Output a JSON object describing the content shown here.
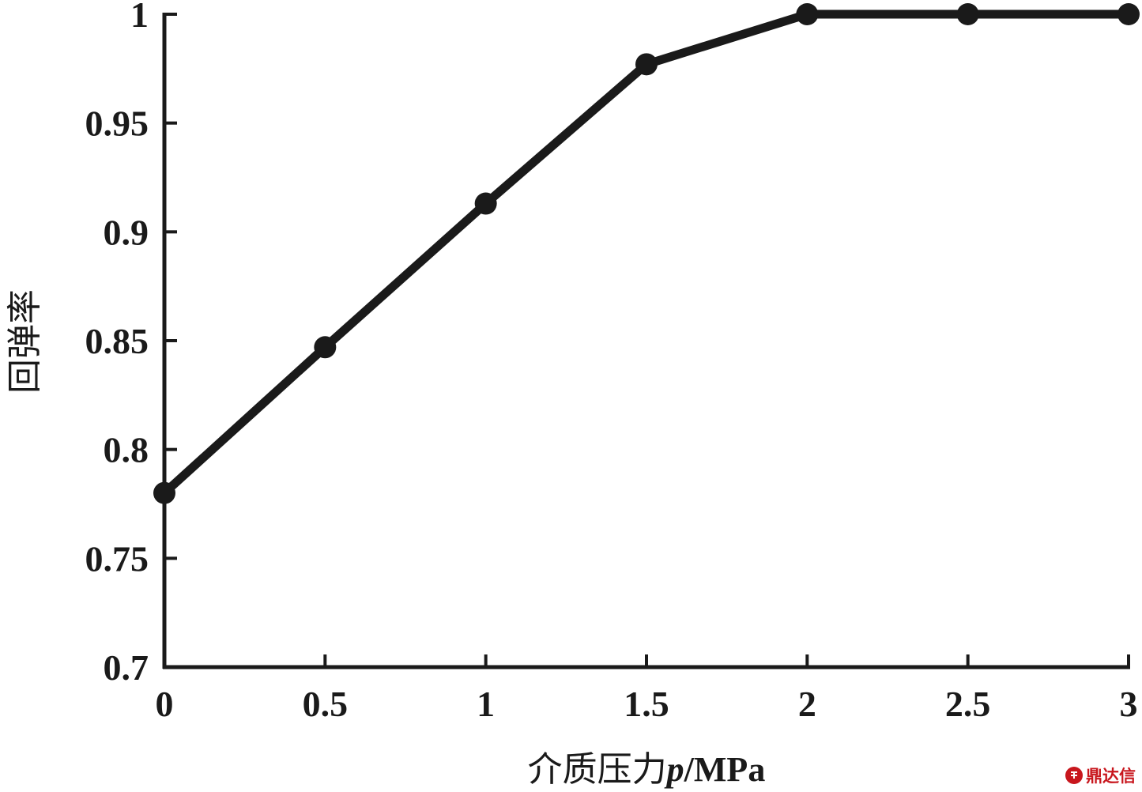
{
  "chart_data": {
    "type": "line",
    "title": "",
    "xlabel": {
      "text_cn": "介质压力",
      "variable": "p",
      "unit_sep": "/",
      "unit": "MPa"
    },
    "ylabel": "回弹率",
    "x": [
      0,
      0.5,
      1,
      1.5,
      2,
      2.5,
      3
    ],
    "series": [
      {
        "values": [
          0.78,
          0.847,
          0.913,
          0.977,
          1.0,
          1.0,
          1.0
        ],
        "color": "#1a1a1a",
        "marker": "filled-circle"
      }
    ],
    "xlim": [
      0,
      3
    ],
    "ylim": [
      0.7,
      1.0
    ],
    "xticks": [
      0,
      0.5,
      1,
      1.5,
      2,
      2.5,
      3
    ],
    "xtick_labels": [
      "0",
      "0.5",
      "1",
      "1.5",
      "2",
      "2.5",
      "3"
    ],
    "yticks": [
      0.7,
      0.75,
      0.8,
      0.85,
      0.9,
      0.95,
      1.0
    ],
    "ytick_labels": [
      "0.7",
      "0.75",
      "0.8",
      "0.85",
      "0.9",
      "0.95",
      "1"
    ],
    "grid": false,
    "legend": "none"
  },
  "watermark": {
    "text": "鼎达信",
    "color": "#c8161d"
  }
}
